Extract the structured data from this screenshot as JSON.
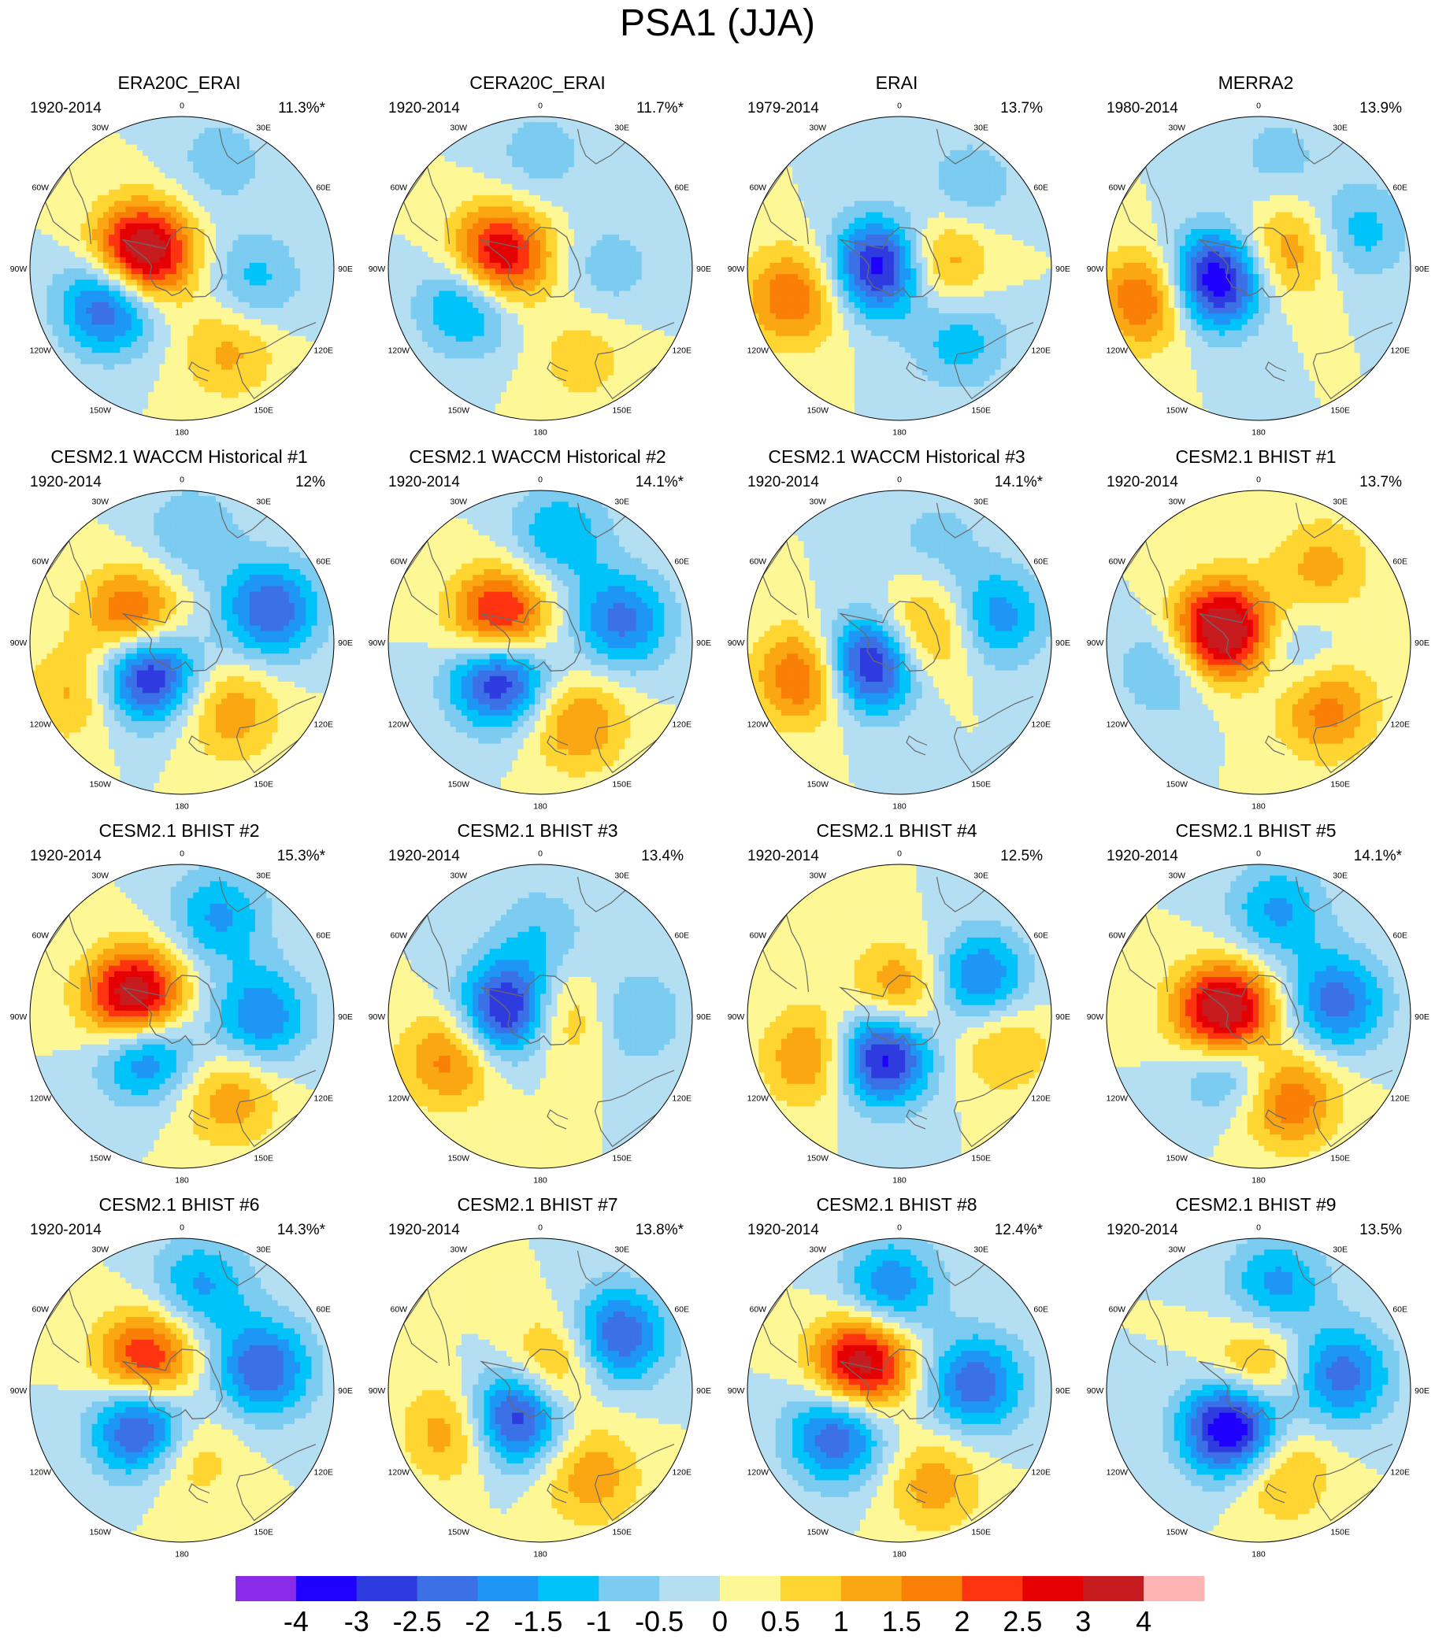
{
  "title": "PSA1 (JJA)",
  "chart_data": {
    "type": "heatmap",
    "projection": "south polar stereographic",
    "title": "PSA1 (JJA)",
    "longitude_labels": [
      "0",
      "30E",
      "60E",
      "90E",
      "120E",
      "150E",
      "180",
      "150W",
      "120W",
      "90W",
      "60W",
      "30W"
    ],
    "panels": [
      {
        "title": "ERA20C_ERAI",
        "period": "1920-2014",
        "variance": "11.3%*",
        "centers": [
          {
            "lon": 288,
            "r": 0.28,
            "value": 4.2
          },
          {
            "lon": 245,
            "r": 0.52,
            "value": -3.0
          },
          {
            "lon": 100,
            "r": 0.48,
            "value": -1.2
          },
          {
            "lon": 150,
            "r": 0.62,
            "value": 1.2
          },
          {
            "lon": 20,
            "r": 0.75,
            "value": -0.8
          }
        ]
      },
      {
        "title": "CERA20C_ERAI",
        "period": "1920-2014",
        "variance": "11.7%*",
        "centers": [
          {
            "lon": 285,
            "r": 0.28,
            "value": 3.4
          },
          {
            "lon": 245,
            "r": 0.52,
            "value": -2.1
          },
          {
            "lon": 90,
            "r": 0.45,
            "value": -0.8
          },
          {
            "lon": 155,
            "r": 0.65,
            "value": 0.8
          },
          {
            "lon": 0,
            "r": 0.75,
            "value": -0.8
          }
        ]
      },
      {
        "title": "ERAI",
        "period": "1979-2014",
        "variance": "13.7%",
        "centers": [
          {
            "lon": 275,
            "r": 0.12,
            "value": -3.6
          },
          {
            "lon": 255,
            "r": 0.72,
            "value": 2.0
          },
          {
            "lon": 80,
            "r": 0.25,
            "value": 1.8
          },
          {
            "lon": 140,
            "r": 0.62,
            "value": -1.3
          },
          {
            "lon": 40,
            "r": 0.72,
            "value": -0.9
          }
        ]
      },
      {
        "title": "MERRA2",
        "period": "1980-2014",
        "variance": "13.9%",
        "centers": [
          {
            "lon": 255,
            "r": 0.3,
            "value": -3.8
          },
          {
            "lon": 255,
            "r": 0.75,
            "value": 2.3
          },
          {
            "lon": 60,
            "r": 0.22,
            "value": 1.6
          },
          {
            "lon": 70,
            "r": 0.7,
            "value": -1.3
          },
          {
            "lon": 10,
            "r": 0.75,
            "value": -0.7
          }
        ]
      },
      {
        "title": "CESM2.1 WACCM Historical #1",
        "period": "1920-2014",
        "variance": "12%",
        "centers": [
          {
            "lon": 295,
            "r": 0.35,
            "value": 2.6
          },
          {
            "lon": 230,
            "r": 0.3,
            "value": -3.6
          },
          {
            "lon": 70,
            "r": 0.62,
            "value": -2.5
          },
          {
            "lon": 145,
            "r": 0.55,
            "value": 1.4
          },
          {
            "lon": 245,
            "r": 0.78,
            "value": 1.2
          },
          {
            "lon": 5,
            "r": 0.72,
            "value": -1.0
          }
        ]
      },
      {
        "title": "CESM2.1 WACCM Historical #2",
        "period": "1920-2014",
        "variance": "14.1%*",
        "centers": [
          {
            "lon": 300,
            "r": 0.3,
            "value": 3.2
          },
          {
            "lon": 230,
            "r": 0.35,
            "value": -3.4
          },
          {
            "lon": 75,
            "r": 0.55,
            "value": -2.2
          },
          {
            "lon": 155,
            "r": 0.58,
            "value": 1.6
          },
          {
            "lon": 10,
            "r": 0.72,
            "value": -1.5
          }
        ]
      },
      {
        "title": "CESM2.1 WACCM Historical #3",
        "period": "1920-2014",
        "variance": "14.1%*",
        "centers": [
          {
            "lon": 235,
            "r": 0.25,
            "value": -3.6
          },
          {
            "lon": 250,
            "r": 0.65,
            "value": 2.4
          },
          {
            "lon": 70,
            "r": 0.2,
            "value": 1.8
          },
          {
            "lon": 75,
            "r": 0.65,
            "value": -1.9
          },
          {
            "lon": 20,
            "r": 0.72,
            "value": -0.7
          }
        ]
      },
      {
        "title": "CESM2.1 BHIST #1",
        "period": "1920-2014",
        "variance": "13.7%",
        "centers": [
          {
            "lon": 285,
            "r": 0.25,
            "value": 4.2
          },
          {
            "lon": 255,
            "r": 0.6,
            "value": -1.4
          },
          {
            "lon": 110,
            "r": 0.22,
            "value": -0.9
          },
          {
            "lon": 135,
            "r": 0.62,
            "value": 1.8
          },
          {
            "lon": 40,
            "r": 0.65,
            "value": 1.2
          }
        ]
      },
      {
        "title": "CESM2.1 BHIST #2",
        "period": "1920-2014",
        "variance": "15.3%*",
        "centers": [
          {
            "lon": 288,
            "r": 0.32,
            "value": 4.3
          },
          {
            "lon": 230,
            "r": 0.32,
            "value": -2.8
          },
          {
            "lon": 90,
            "r": 0.52,
            "value": -2.0
          },
          {
            "lon": 150,
            "r": 0.62,
            "value": 1.4
          },
          {
            "lon": 20,
            "r": 0.7,
            "value": -1.6
          }
        ]
      },
      {
        "title": "CESM2.1 BHIST #3",
        "period": "1920-2014",
        "variance": "13.4%",
        "centers": [
          {
            "lon": 280,
            "r": 0.2,
            "value": -3.8
          },
          {
            "lon": 245,
            "r": 0.65,
            "value": 1.8
          },
          {
            "lon": 90,
            "r": 0.1,
            "value": 1.8
          },
          {
            "lon": 90,
            "r": 0.62,
            "value": -1.1
          },
          {
            "lon": 0,
            "r": 0.55,
            "value": -0.9
          }
        ]
      },
      {
        "title": "CESM2.1 BHIST #4",
        "period": "1920-2014",
        "variance": "12.5%",
        "centers": [
          {
            "lon": 205,
            "r": 0.28,
            "value": -3.6
          },
          {
            "lon": 245,
            "r": 0.62,
            "value": 1.8
          },
          {
            "lon": 0,
            "r": 0.15,
            "value": 1.8
          },
          {
            "lon": 65,
            "r": 0.58,
            "value": -2.2
          },
          {
            "lon": 105,
            "r": 0.7,
            "value": 1.2
          }
        ]
      },
      {
        "title": "CESM2.1 BHIST #5",
        "period": "1920-2014",
        "variance": "14.1%*",
        "centers": [
          {
            "lon": 270,
            "r": 0.22,
            "value": 4.5
          },
          {
            "lon": 215,
            "r": 0.35,
            "value": -2.2
          },
          {
            "lon": 80,
            "r": 0.52,
            "value": -2.3
          },
          {
            "lon": 160,
            "r": 0.58,
            "value": 2.0
          },
          {
            "lon": 10,
            "r": 0.7,
            "value": -1.6
          }
        ]
      },
      {
        "title": "CESM2.1 BHIST #6",
        "period": "1920-2014",
        "variance": "14.3%*",
        "centers": [
          {
            "lon": 310,
            "r": 0.3,
            "value": 2.8
          },
          {
            "lon": 225,
            "r": 0.35,
            "value": -3.4
          },
          {
            "lon": 75,
            "r": 0.55,
            "value": -2.5
          },
          {
            "lon": 180,
            "r": 0.4,
            "value": 1.4
          },
          {
            "lon": 10,
            "r": 0.7,
            "value": -1.6
          }
        ]
      },
      {
        "title": "CESM2.1 BHIST #7",
        "period": "1920-2014",
        "variance": "13.8%*",
        "centers": [
          {
            "lon": 225,
            "r": 0.25,
            "value": -3.2
          },
          {
            "lon": 245,
            "r": 0.62,
            "value": 1.6
          },
          {
            "lon": 30,
            "r": 0.2,
            "value": 1.6
          },
          {
            "lon": 55,
            "r": 0.62,
            "value": -2.6
          },
          {
            "lon": 150,
            "r": 0.65,
            "value": 1.4
          }
        ]
      },
      {
        "title": "CESM2.1 BHIST #8",
        "period": "1920-2014",
        "variance": "12.4%*",
        "centers": [
          {
            "lon": 305,
            "r": 0.3,
            "value": 3.6
          },
          {
            "lon": 235,
            "r": 0.5,
            "value": -2.6
          },
          {
            "lon": 85,
            "r": 0.5,
            "value": -2.4
          },
          {
            "lon": 160,
            "r": 0.65,
            "value": 1.3
          },
          {
            "lon": 355,
            "r": 0.68,
            "value": -2.0
          }
        ]
      },
      {
        "title": "CESM2.1 BHIST #9",
        "period": "1920-2014",
        "variance": "13.5%",
        "centers": [
          {
            "lon": 215,
            "r": 0.3,
            "value": -4.0
          },
          {
            "lon": 355,
            "r": 0.15,
            "value": 1.6
          },
          {
            "lon": 80,
            "r": 0.55,
            "value": -2.3
          },
          {
            "lon": 165,
            "r": 0.55,
            "value": 1.4
          },
          {
            "lon": 10,
            "r": 0.7,
            "value": -1.7
          }
        ]
      }
    ],
    "colorbar": {
      "levels": [
        "-4",
        "-3",
        "-2.5",
        "-2",
        "-1.5",
        "-1",
        "-0.5",
        "0",
        "0.5",
        "1",
        "1.5",
        "2",
        "2.5",
        "3",
        "4"
      ],
      "bounds": [
        -5,
        -4,
        -3,
        -2.5,
        -2,
        -1.5,
        -1,
        -0.5,
        0,
        0.5,
        1,
        1.5,
        2,
        2.5,
        3,
        4,
        5
      ],
      "colors": [
        "#8b2bea",
        "#1f00ff",
        "#2e3bdf",
        "#3b70e6",
        "#1e96f5",
        "#00c3fa",
        "#7ccbf1",
        "#b4dff3",
        "#fef795",
        "#fed531",
        "#fba713",
        "#fa7f07",
        "#fe330f",
        "#e40003",
        "#c71c1f",
        "#feb4b3"
      ]
    }
  }
}
